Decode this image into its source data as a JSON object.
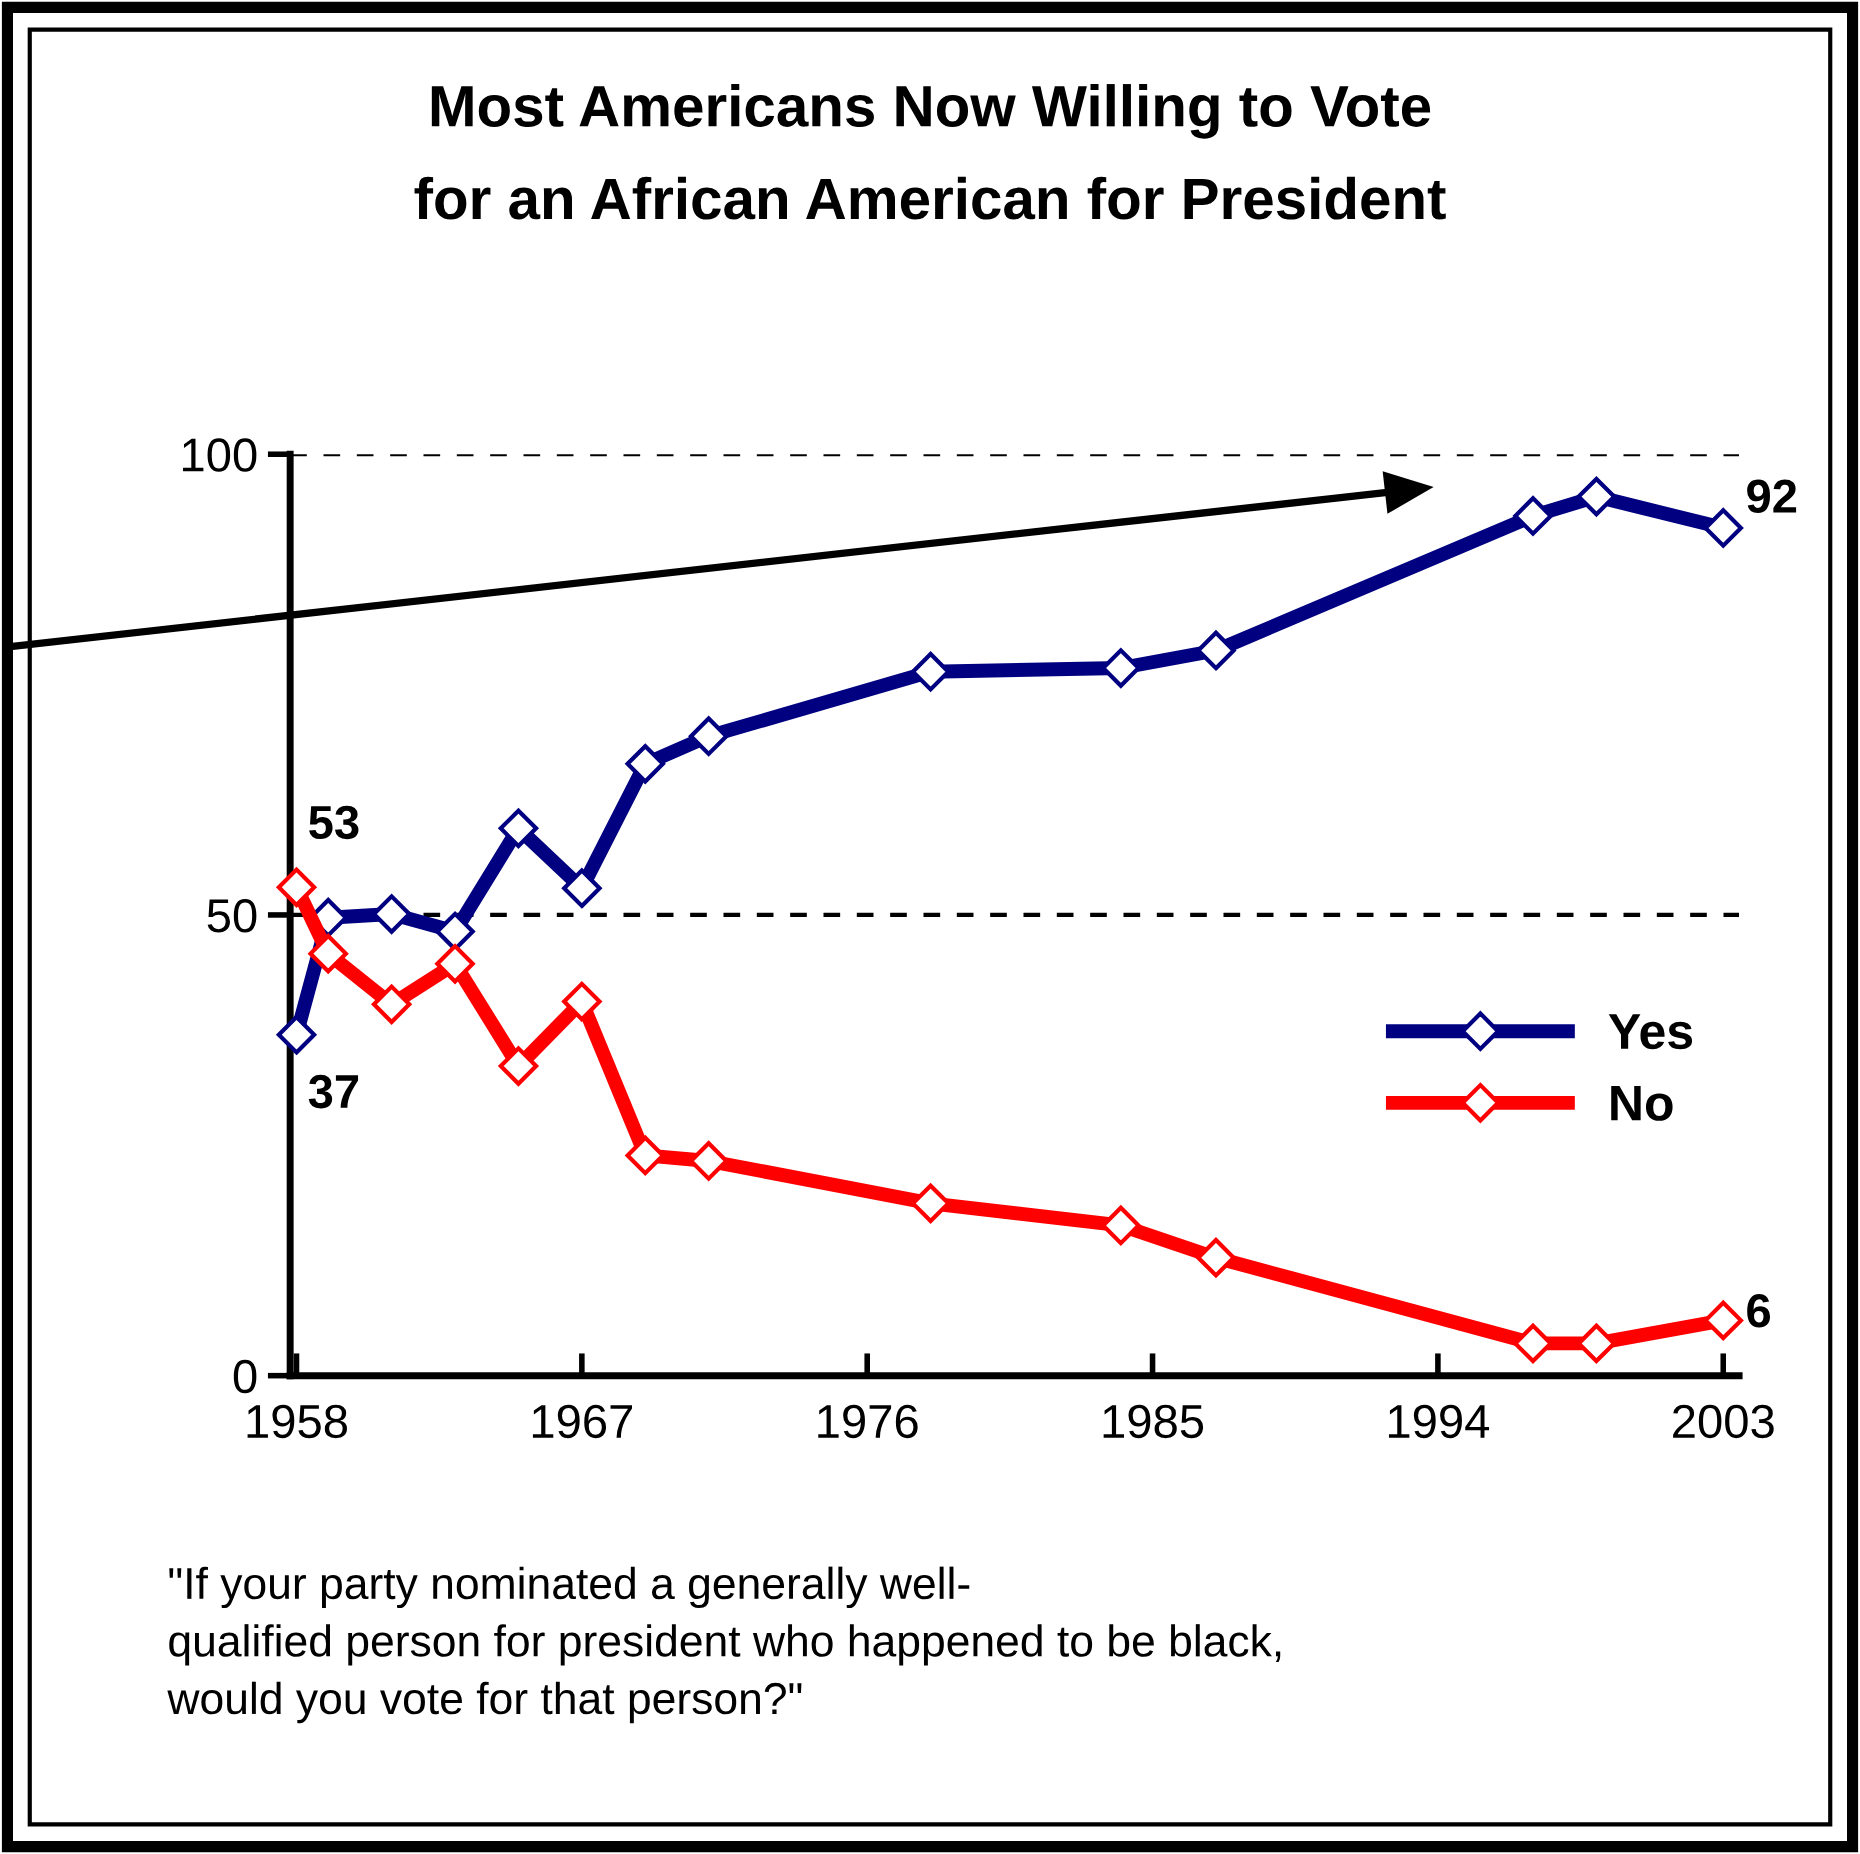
{
  "chart_data": {
    "type": "line",
    "title": "Most Americans Now Willing to Vote\nfor an African American for President",
    "x": [
      1958,
      1959,
      1961,
      1963,
      1965,
      1967,
      1969,
      1971,
      1978,
      1984,
      1987,
      1997,
      1999,
      2003
    ],
    "series": [
      {
        "name": "Yes",
        "color": "#000080",
        "values": [
          37,
          49.7,
          50.1,
          48.2,
          59.4,
          52.9,
          66.4,
          69.4,
          76.4,
          76.8,
          78.7,
          93.3,
          95.4,
          92
        ],
        "value_labels": [
          "37",
          null,
          null,
          null,
          null,
          null,
          null,
          null,
          null,
          null,
          null,
          null,
          null,
          "92"
        ]
      },
      {
        "name": "No",
        "color": "#ff0000",
        "values": [
          53,
          45.8,
          40.3,
          44.7,
          33.6,
          40.6,
          23.9,
          23.3,
          18.7,
          16.3,
          12.8,
          3.5,
          3.5,
          6
        ],
        "value_labels": [
          "53",
          null,
          null,
          null,
          null,
          null,
          null,
          null,
          null,
          null,
          null,
          null,
          null,
          "6"
        ]
      }
    ],
    "xlim": [
      1957.8,
      2003.5
    ],
    "xticks": [
      1958,
      1967,
      1976,
      1985,
      1994,
      2003
    ],
    "ylim": [
      0,
      100
    ],
    "yticks": [
      0,
      50,
      100
    ],
    "grid": "y",
    "legend": "right",
    "marker": "diamond",
    "line_style": "solid",
    "annotations": [
      "\"If your party nominated a generally well-\nqualified person for president who happened to be black,\nwould you vote for that person?\""
    ]
  }
}
